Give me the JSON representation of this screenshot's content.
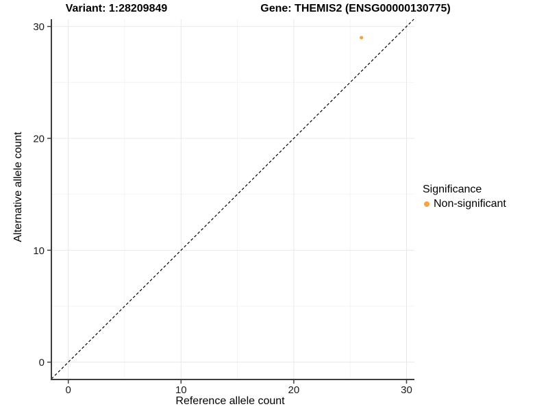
{
  "titles": {
    "variant": "Variant: 1:28209849",
    "gene": "Gene: THEMIS2 (ENSG00000130775)"
  },
  "axes": {
    "x_label": "Reference allele count",
    "y_label": "Alternative allele count"
  },
  "legend": {
    "title": "Significance",
    "items": [
      {
        "label": "Non-significant",
        "color": "#F9A242",
        "marker": "dot-icon"
      }
    ]
  },
  "colors": {
    "point": "#F9A242",
    "axis_line": "#3d3d3d",
    "tick_mark": "#3d3d3d",
    "grid_major": "#e8e8e8",
    "grid_minor": "#f3f3f3",
    "identity_line": "#000000",
    "background": "#ffffff"
  },
  "chart_data": {
    "type": "scatter",
    "title": "Variant: 1:28209849   |   Gene: THEMIS2 (ENSG00000130775)",
    "xlabel": "Reference allele count",
    "ylabel": "Alternative allele count",
    "x_ticks": [
      0,
      10,
      20,
      30
    ],
    "y_ticks": [
      0,
      10,
      20,
      30
    ],
    "x_minor_ticks": [
      5,
      15,
      25
    ],
    "y_minor_ticks": [
      5,
      15,
      25
    ],
    "xlim": [
      -1.5,
      30.7
    ],
    "ylim": [
      -1.55,
      30.65
    ],
    "grid": true,
    "legend_position": "right",
    "series": [
      {
        "name": "Non-significant",
        "color": "#F9A242",
        "points": [
          {
            "x": 26,
            "y": 29
          }
        ]
      }
    ],
    "reference_line": {
      "kind": "identity",
      "style": "dashed"
    }
  }
}
